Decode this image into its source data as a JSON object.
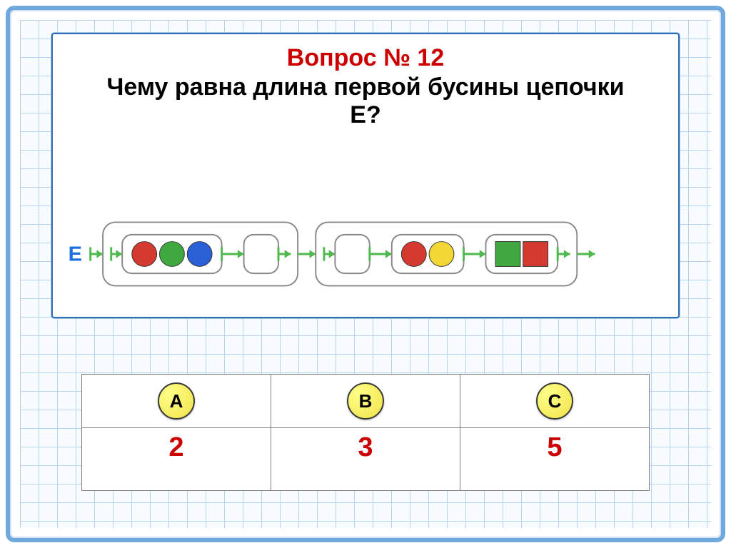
{
  "title": "Вопрос № 12",
  "question_line1": "Чему равна длина первой  бусины цепочки",
  "question_line2": "Е?",
  "colors": {
    "title": "#cc0000",
    "text": "#000000",
    "frame_border": "#6fa8dc",
    "card_border": "#2f6fb6",
    "grid_line": "#b7d3f2",
    "answer_value": "#cc0000",
    "button_fill": "#f1e24a",
    "button_border": "#3a3a3a",
    "arrow": "#4fb84f",
    "bead_outline": "#888888"
  },
  "chain": {
    "label": "Е",
    "label_color": "#1f6fe0",
    "groups": [
      {
        "sub_beads": [
          {
            "shapes": [
              {
                "type": "circle",
                "fill": "#d43a2f"
              },
              {
                "type": "circle",
                "fill": "#3fa83f"
              },
              {
                "type": "circle",
                "fill": "#2a5fd6"
              }
            ]
          },
          {
            "shapes": []
          }
        ]
      },
      {
        "sub_beads": [
          {
            "shapes": []
          },
          {
            "shapes": [
              {
                "type": "circle",
                "fill": "#d43a2f"
              },
              {
                "type": "circle",
                "fill": "#f2d735"
              }
            ]
          },
          {
            "shapes": [
              {
                "type": "square",
                "fill": "#3fa83f"
              },
              {
                "type": "square",
                "fill": "#d43a2f"
              }
            ]
          }
        ]
      }
    ]
  },
  "answers": {
    "options": [
      {
        "label": "A",
        "value": "2"
      },
      {
        "label": "B",
        "value": "3"
      },
      {
        "label": "C",
        "value": "5"
      }
    ]
  }
}
